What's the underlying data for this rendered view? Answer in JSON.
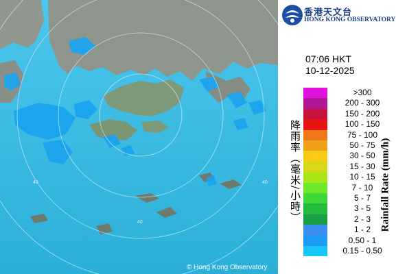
{
  "logo": {
    "name_cn": "香港天文台",
    "name_en": "HONG KONG OBSERVATORY"
  },
  "timestamp": {
    "time": "07:06 HKT",
    "date": "10-12-2025"
  },
  "legend": {
    "title_cn": "降雨率（毫米/小時）",
    "title_en": "Rainfall Rate (mm/h)",
    "items": [
      {
        "label": ">300",
        "color": "#e012e0"
      },
      {
        "label": "200 - 300",
        "color": "#b01896"
      },
      {
        "label": "150 - 200",
        "color": "#c8143c"
      },
      {
        "label": "100 - 150",
        "color": "#e81414"
      },
      {
        "label": "75 - 100",
        "color": "#ee7818"
      },
      {
        "label": "50 - 75",
        "color": "#f0a018"
      },
      {
        "label": "30 - 50",
        "color": "#f8cc14"
      },
      {
        "label": "15 - 30",
        "color": "#d8d818"
      },
      {
        "label": "10 - 15",
        "color": "#a8e618"
      },
      {
        "label": "7 - 10",
        "color": "#6ee82a"
      },
      {
        "label": "5 - 7",
        "color": "#3ed838"
      },
      {
        "label": "3 - 5",
        "color": "#22bd3e"
      },
      {
        "label": "2 - 3",
        "color": "#1a9e48"
      },
      {
        "label": "1 - 2",
        "color": "#3c8ef0"
      },
      {
        "label": "0.50 - 1",
        "color": "#1c9cf4"
      },
      {
        "label": "0.15 - 0.50",
        "color": "#16c6fa"
      }
    ]
  },
  "map": {
    "range_ring_labels": [
      "40",
      "40",
      "40"
    ],
    "sea_color": "#3ab8de",
    "land_color": "#8a9388",
    "rain_color": "#1aa4f0"
  },
  "copyright": "© Hong Kong Observatory"
}
